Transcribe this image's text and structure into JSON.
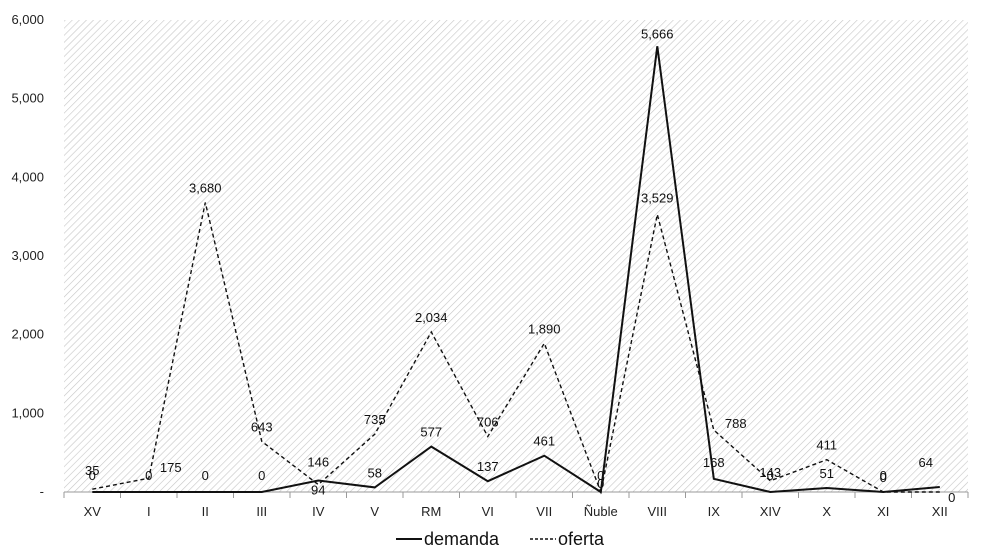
{
  "chart_data": {
    "type": "line",
    "categories": [
      "XV",
      "I",
      "II",
      "III",
      "IV",
      "V",
      "RM",
      "VI",
      "VII",
      "Ñuble",
      "VIII",
      "IX",
      "XIV",
      "X",
      "XI",
      "XII"
    ],
    "series": [
      {
        "name": "demanda",
        "values": [
          0,
          0,
          0,
          0,
          146,
          58,
          577,
          137,
          461,
          0,
          5666,
          168,
          0,
          51,
          0,
          64
        ],
        "line_style": "solid",
        "color": "#111111"
      },
      {
        "name": "oferta",
        "values": [
          35,
          175,
          3680,
          643,
          94,
          735,
          2034,
          706,
          1890,
          0,
          3529,
          788,
          143,
          411,
          0,
          0
        ],
        "line_style": "dashed",
        "color": "#111111"
      }
    ],
    "ylim": [
      0,
      6000
    ],
    "y_ticks": [
      0,
      1000,
      2000,
      3000,
      4000,
      5000,
      6000
    ],
    "y_tick_labels": [
      "-",
      "1,000",
      "2,000",
      "3,000",
      "4,000",
      "5,000",
      "6,000"
    ],
    "data_labels": {
      "demanda": [
        "0",
        "0",
        "0",
        "0",
        "146",
        "58",
        "577",
        "137",
        "461",
        "0",
        "5,666",
        "168",
        "0",
        "51",
        "0",
        "64"
      ],
      "oferta": [
        "35",
        "175",
        "3,680",
        "643",
        "94",
        "735",
        "2,034",
        "706",
        "1,890",
        "0",
        "3,529",
        "788",
        "143",
        "411",
        "0",
        "0"
      ]
    },
    "grid": false,
    "plot_background": "hatched",
    "legend_position": "bottom-center",
    "title": "",
    "xlabel": "",
    "ylabel": ""
  }
}
